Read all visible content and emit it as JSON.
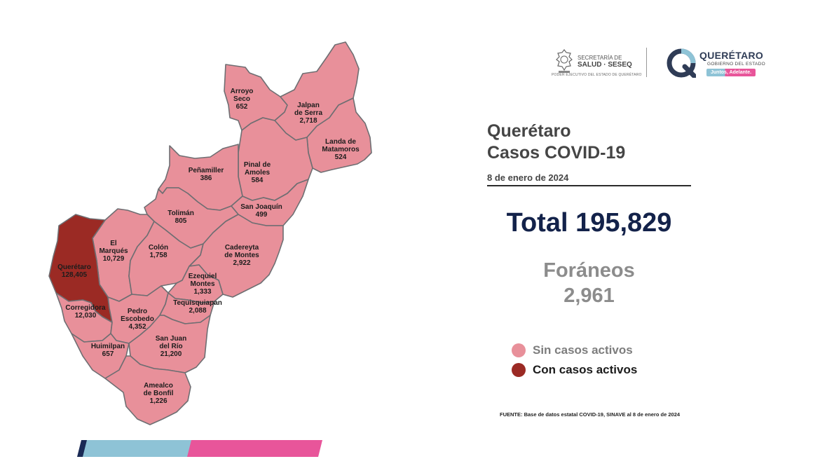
{
  "header": {
    "seal_text": "SECRETARÍA DE",
    "seal_text_2": "SALUD · SESEQ",
    "seal_subtext": "PODER EJECUTIVO DEL ESTADO DE QUERÉTARO",
    "gov_title": "QUERÉTARO",
    "gov_subtitle": "GOBIERNO DEL ESTADO",
    "gov_slogan": "Juntos, Adelante."
  },
  "report": {
    "title_line1": "Querétaro",
    "title_line2": "Casos COVID-19",
    "date": "8 de enero de 2024",
    "total": "Total 195,829",
    "foraneos_label": "Foráneos",
    "foraneos_value": "2,961",
    "source": "FUENTE: Base de datos estatal COVID-19, SINAVE al 8 de enero de 2024"
  },
  "legend": [
    {
      "label": "Sin casos activos",
      "color": "#e8909a"
    },
    {
      "label": "Con casos activos",
      "color": "#9b2a24"
    }
  ],
  "colors": {
    "no_active": "#e8909a",
    "active": "#9b2a24",
    "stroke": "#6e6e72",
    "bar_navy": "#1a2a55",
    "bar_blue": "#8ec3d6",
    "bar_pink": "#e8559a"
  },
  "municipalities": [
    {
      "id": "arroyo-seco",
      "name": [
        "Arroyo",
        "Seco"
      ],
      "cases": "652",
      "active": false
    },
    {
      "id": "jalpan",
      "name": [
        "Jalpan",
        "de Serra"
      ],
      "cases": "2,718",
      "active": false
    },
    {
      "id": "landa",
      "name": [
        "Landa de",
        "Matamoros"
      ],
      "cases": "524",
      "active": false
    },
    {
      "id": "pinal",
      "name": [
        "Pinal de",
        "Amoles"
      ],
      "cases": "584",
      "active": false
    },
    {
      "id": "penamiller",
      "name": [
        "Peñamiller"
      ],
      "cases": "386",
      "active": false
    },
    {
      "id": "san-joaquin",
      "name": [
        "San Joaquín"
      ],
      "cases": "499",
      "active": false
    },
    {
      "id": "toliman",
      "name": [
        "Tolimán"
      ],
      "cases": "805",
      "active": false
    },
    {
      "id": "el-marques",
      "name": [
        "El",
        "Marqués"
      ],
      "cases": "10,729",
      "active": false
    },
    {
      "id": "colon",
      "name": [
        "Colón"
      ],
      "cases": "1,758",
      "active": false
    },
    {
      "id": "cadereyta",
      "name": [
        "Cadereyta",
        "de Montes"
      ],
      "cases": "2,922",
      "active": false
    },
    {
      "id": "queretaro",
      "name": [
        "Querétaro"
      ],
      "cases": "128,405",
      "active": true
    },
    {
      "id": "ezequiel-montes",
      "name": [
        "Ezequiel",
        "Montes"
      ],
      "cases": "1,333",
      "active": false
    },
    {
      "id": "corregidora",
      "name": [
        "Corregidora"
      ],
      "cases": "12,030",
      "active": false
    },
    {
      "id": "pedro-escobedo",
      "name": [
        "Pedro",
        "Escobedo"
      ],
      "cases": "4,352",
      "active": false
    },
    {
      "id": "tequisquiapan",
      "name": [
        "Tequisquiapan"
      ],
      "cases": "2,088",
      "active": false
    },
    {
      "id": "huimilpan",
      "name": [
        "Huimilpan"
      ],
      "cases": "657",
      "active": false
    },
    {
      "id": "san-juan",
      "name": [
        "San Juan",
        "del Río"
      ],
      "cases": "21,200",
      "active": false
    },
    {
      "id": "amealco",
      "name": [
        "Amealco",
        "de Bonfil"
      ],
      "cases": "1,226",
      "active": false
    }
  ]
}
